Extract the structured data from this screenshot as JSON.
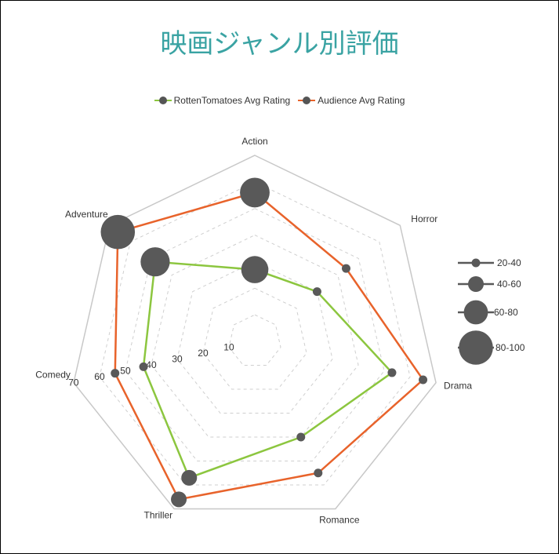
{
  "title": "映画ジャンル別評価",
  "chart_data": {
    "type": "radar",
    "title": "映画ジャンル別評価",
    "categories": [
      "Action",
      "Horror",
      "Drama",
      "Romance",
      "Thriller",
      "Comedy",
      "Adventure"
    ],
    "rlim": [
      0,
      70
    ],
    "ticks": [
      10,
      20,
      30,
      40,
      50,
      60,
      70
    ],
    "grid": true,
    "legend_position": "top",
    "series": [
      {
        "name": "RottenTomatoes Avg Rating",
        "color": "#8cc63f",
        "values": [
          27,
          30,
          53,
          40,
          57,
          43,
          48
        ],
        "bubble_sizes": [
          76,
          30,
          30,
          30,
          50,
          30,
          80
        ]
      },
      {
        "name": "Audience Avg Rating",
        "color": "#e8632b",
        "values": [
          56,
          44,
          65,
          55,
          66,
          54,
          66
        ],
        "bubble_sizes": [
          81,
          30,
          30,
          30,
          50,
          30,
          90
        ]
      }
    ],
    "size_legend": {
      "position": "right",
      "items": [
        {
          "label": "20-40",
          "value": 30
        },
        {
          "label": "40-60",
          "value": 50
        },
        {
          "label": "60-80",
          "value": 70
        },
        {
          "label": "80-100",
          "value": 90
        }
      ]
    },
    "marker_color": "#595959"
  }
}
